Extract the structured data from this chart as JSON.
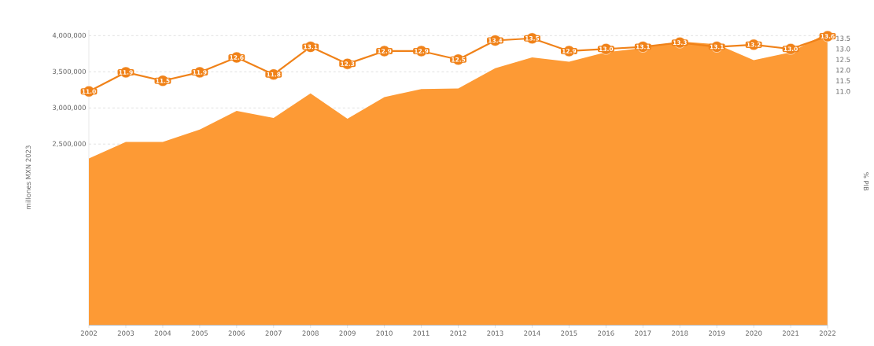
{
  "chart_data": {
    "type": "area",
    "ylabel": "millones MXN 2023",
    "y2label": "% PIB",
    "x": [
      2002,
      2003,
      2004,
      2005,
      2006,
      2007,
      2008,
      2009,
      2010,
      2011,
      2012,
      2013,
      2014,
      2015,
      2016,
      2017,
      2018,
      2019,
      2020,
      2021,
      2022
    ],
    "xlim": [
      2002,
      2022
    ],
    "xticks": [
      2002,
      2003,
      2004,
      2005,
      2006,
      2007,
      2008,
      2009,
      2010,
      2011,
      2012,
      2013,
      2014,
      2015,
      2016,
      2017,
      2018,
      2019,
      2020,
      2021,
      2022
    ],
    "ylim": [
      0,
      4080000
    ],
    "yticks": [
      {
        "value": 2500000,
        "label": "2,500,000"
      },
      {
        "value": 3000000,
        "label": "3,000,000"
      },
      {
        "value": 3500000,
        "label": "3,500,000"
      },
      {
        "value": 4000000,
        "label": "4,000,000"
      }
    ],
    "y2lim": [
      -0.2,
      13.7
    ],
    "y2ticks": [
      {
        "value": 11,
        "label": "11.0"
      },
      11.5,
      {
        "value": 12,
        "label": "12.0"
      },
      12.5,
      {
        "value": 13,
        "label": "13.0"
      },
      13.5
    ],
    "grid": "y",
    "series": [
      {
        "color": "#fd9a35",
        "values": [
          2300000,
          2530000,
          2530000,
          2700000,
          2960000,
          2860000,
          3200000,
          2850000,
          3150000,
          3260000,
          3270000,
          3550000,
          3700000,
          3640000,
          3770000,
          3830000,
          3920000,
          3880000,
          3660000,
          3770000,
          4040000
        ]
      },
      {
        "type": "line",
        "axis": "y2",
        "color": "#f08219",
        "marker": "circle",
        "values": [
          11.0,
          11.9,
          11.5,
          11.9,
          12.6,
          11.8,
          13.1,
          12.3,
          12.9,
          12.9,
          12.5,
          13.4,
          13.5,
          12.9,
          13.0,
          13.1,
          13.3,
          13.1,
          13.2,
          13.0,
          13.6
        ],
        "value_labels": [
          "11.0",
          "11.9",
          "11.5",
          "11.9",
          "12.6",
          "11.8",
          "13.1",
          "12.3",
          "12.9",
          "12.9",
          "12.5",
          "13.4",
          "13.5",
          "12.9",
          "13.0",
          "13.1",
          "13.3",
          "13.1",
          "13.2",
          "13.0",
          "13.6"
        ]
      }
    ]
  }
}
